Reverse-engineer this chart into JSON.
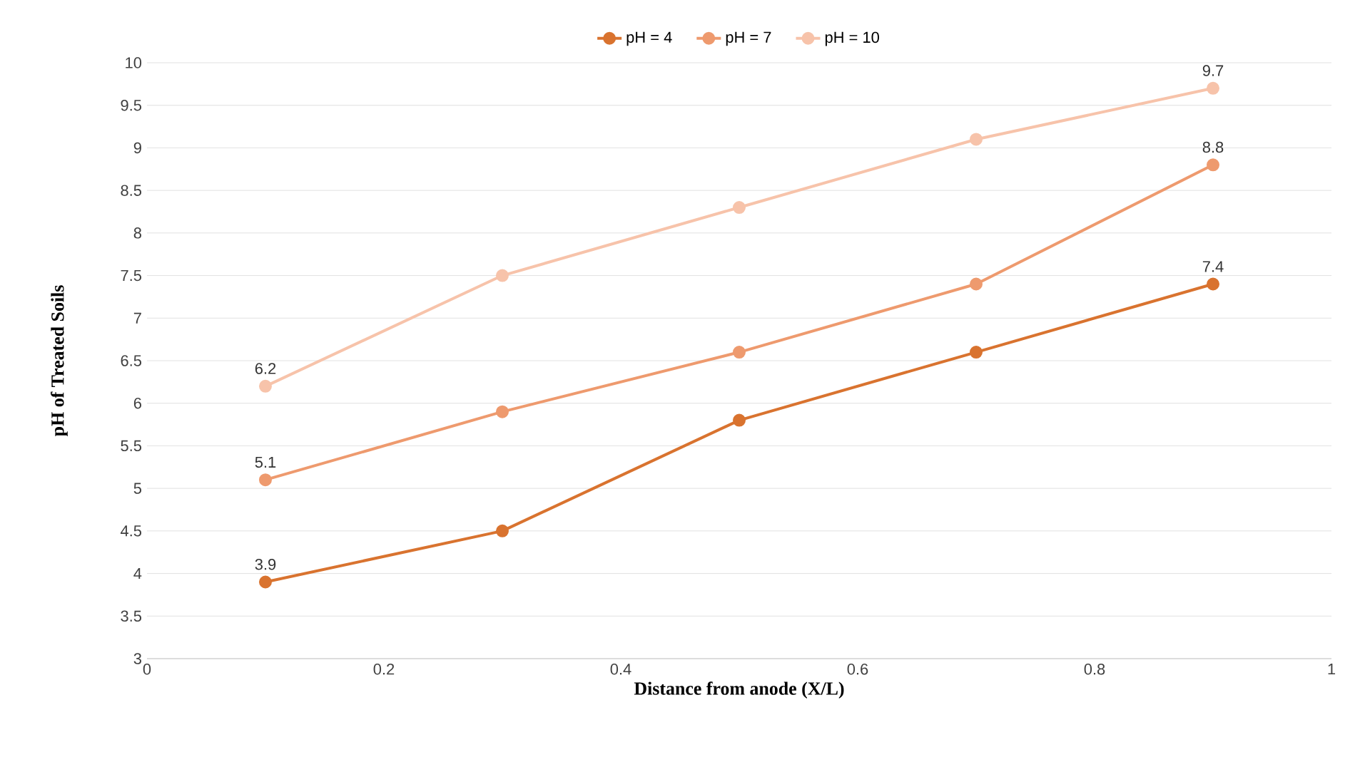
{
  "chart_data": {
    "type": "line",
    "xlabel": "Distance from anode (X/L)",
    "ylabel": "pH of Treated Soils",
    "x": [
      0.1,
      0.3,
      0.5,
      0.7,
      0.9
    ],
    "series": [
      {
        "name": "pH = 4",
        "color": "#d9732f",
        "values": [
          3.9,
          4.5,
          5.8,
          6.6,
          7.4
        ],
        "value_labels": [
          "3.9",
          null,
          null,
          null,
          "7.4"
        ]
      },
      {
        "name": "pH = 7",
        "color": "#ee9a6e",
        "values": [
          5.1,
          5.9,
          6.6,
          7.4,
          8.8
        ],
        "value_labels": [
          "5.1",
          null,
          null,
          null,
          "8.8"
        ]
      },
      {
        "name": "pH = 10",
        "color": "#f7c3aa",
        "values": [
          6.2,
          7.5,
          8.3,
          9.1,
          9.7
        ],
        "value_labels": [
          "6.2",
          null,
          null,
          null,
          "9.7"
        ]
      }
    ],
    "xlim": [
      0,
      1
    ],
    "xticks": [
      0,
      0.2,
      0.4,
      0.6,
      0.8,
      1
    ],
    "ylim": [
      3,
      10
    ],
    "yticks": [
      3,
      3.5,
      4,
      4.5,
      5,
      5.5,
      6,
      6.5,
      7,
      7.5,
      8,
      8.5,
      9,
      9.5,
      10
    ],
    "grid": "y",
    "legend": "top",
    "marker": "circle",
    "line_style": "solid"
  }
}
